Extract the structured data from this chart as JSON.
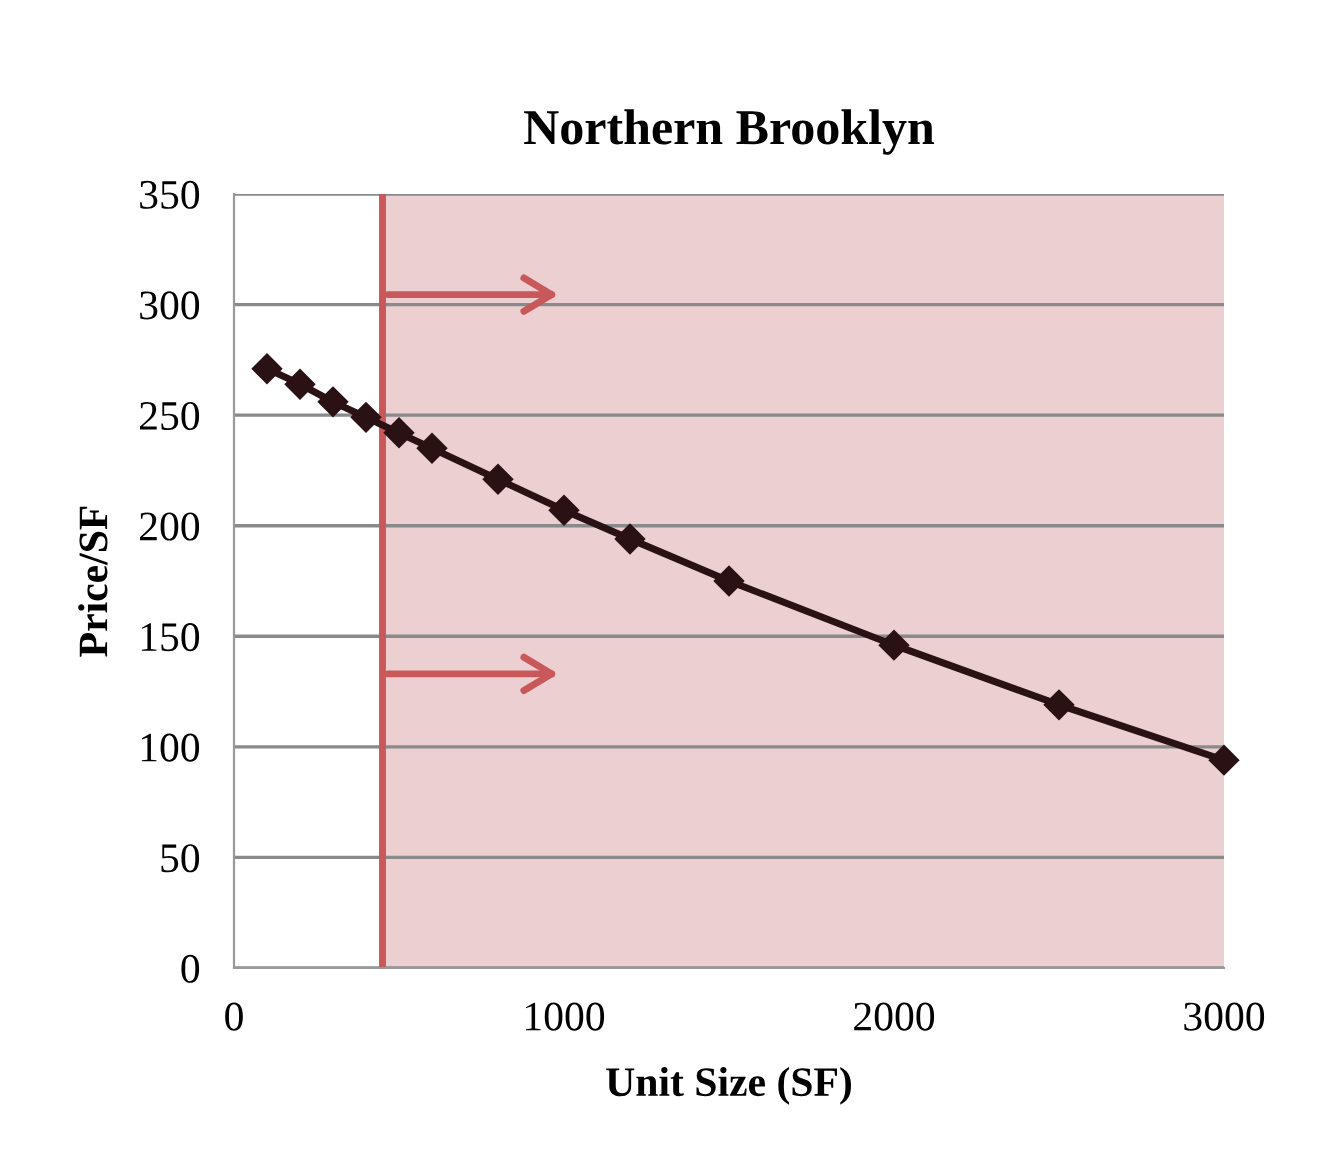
{
  "chart_data": {
    "type": "line",
    "title": "Northern Brooklyn",
    "xlabel": "Unit Size (SF)",
    "ylabel": "Price/SF",
    "x": [
      100,
      200,
      300,
      400,
      500,
      600,
      800,
      1000,
      1200,
      1500,
      2000,
      2500,
      3000
    ],
    "series": [
      {
        "color": "#2a1214",
        "values": [
          271,
          264,
          256,
          249,
          242,
          235,
          221,
          207,
          194,
          175,
          146,
          119,
          94
        ]
      }
    ],
    "xlim": [
      0,
      3000
    ],
    "xticks": [
      0,
      1000,
      2000,
      3000
    ],
    "ylim": [
      0,
      350
    ],
    "yticks": [
      0,
      50,
      100,
      150,
      200,
      250,
      300,
      350
    ],
    "ref_lines": [
      {
        "axis": "x",
        "value": 450,
        "color": "#c8585a"
      }
    ],
    "bands": [
      {
        "axis": "x",
        "from": 450,
        "to": 3000,
        "color": "#ebcfd1"
      }
    ],
    "grid": "y",
    "marker": "diamond",
    "line_style": "solid"
  }
}
